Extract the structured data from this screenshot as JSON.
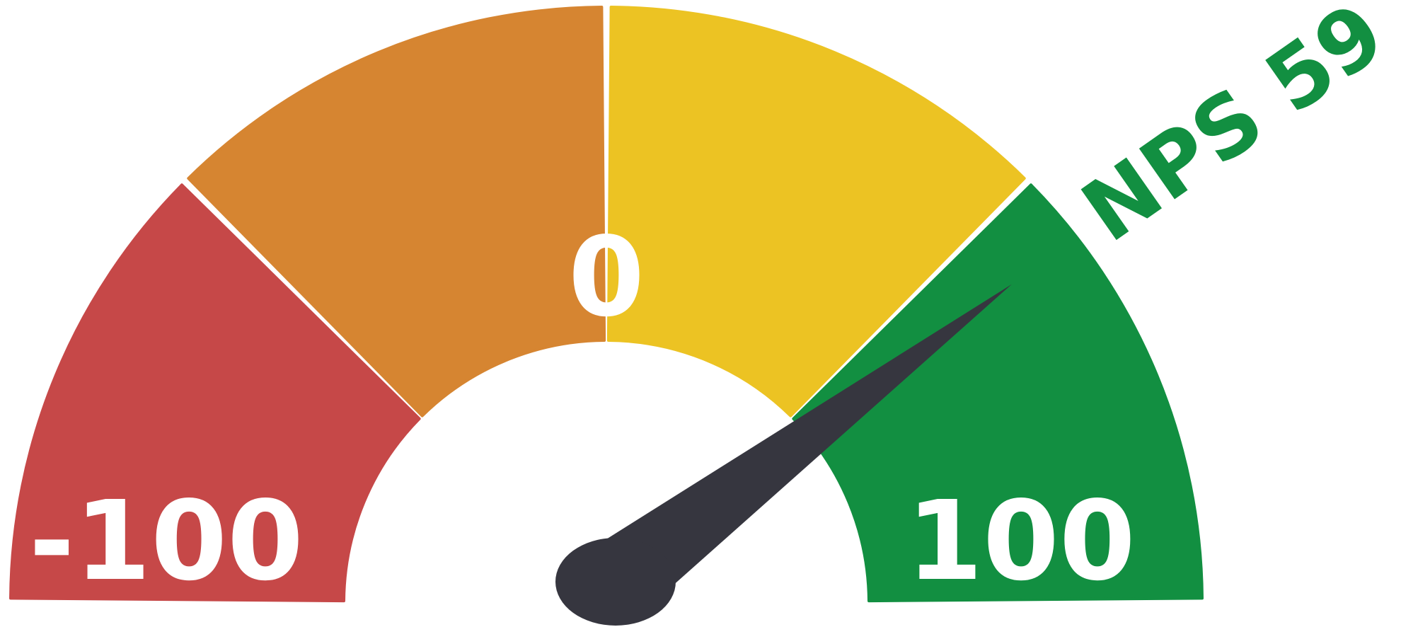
{
  "chart_data": {
    "type": "gauge",
    "title": "NPS 59",
    "value": 59,
    "range": [
      -100,
      100
    ],
    "segments": [
      {
        "from": -100,
        "to": -50,
        "color": "#c64848"
      },
      {
        "from": -50,
        "to": 0,
        "color": "#d68531"
      },
      {
        "from": 0,
        "to": 50,
        "color": "#ecc323"
      },
      {
        "from": 50,
        "to": 100,
        "color": "#128f41"
      }
    ],
    "labels": {
      "min": "-100",
      "mid": "0",
      "max": "100"
    },
    "needle_color": "#36363f"
  }
}
